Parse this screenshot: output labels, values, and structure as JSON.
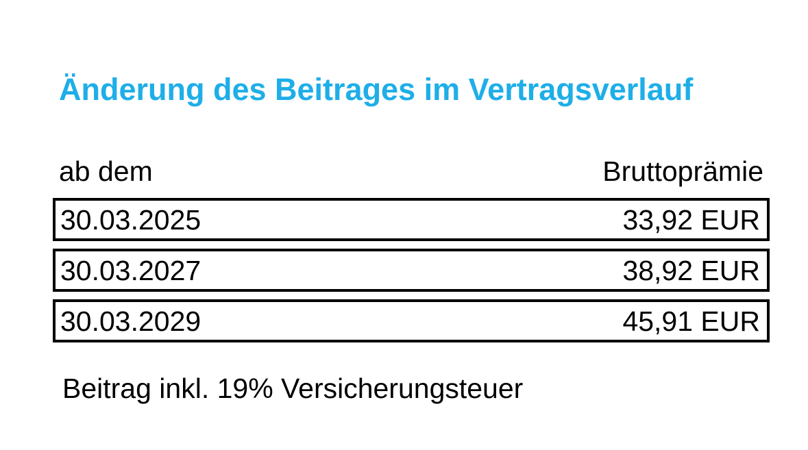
{
  "title": "Änderung des Beitrages im Vertragsverlauf",
  "table": {
    "headers": {
      "date": "ab dem",
      "premium": "Bruttoprämie"
    },
    "rows": [
      {
        "date": "30.03.2025",
        "premium": "33,92 EUR"
      },
      {
        "date": "30.03.2027",
        "premium": "38,92 EUR"
      },
      {
        "date": "30.03.2029",
        "premium": "45,91 EUR"
      }
    ]
  },
  "footnote": "Beitrag inkl. 19% Versicherungsteuer",
  "colors": {
    "title": "#1eaee8",
    "text": "#000000",
    "border": "#000000"
  }
}
